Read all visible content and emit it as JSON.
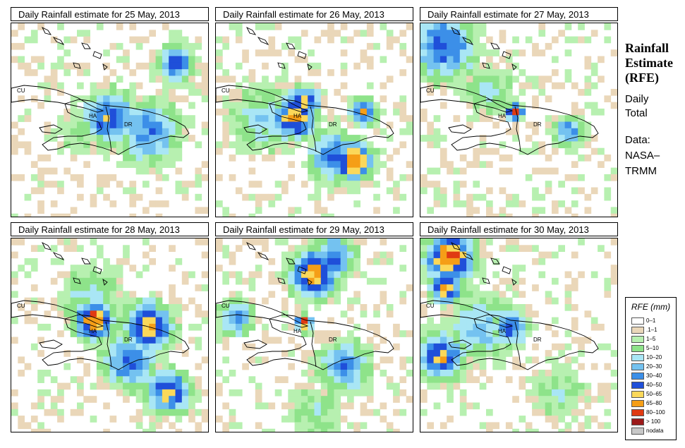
{
  "panels": [
    {
      "title": "Daily Rainfall estimate for  25 May, 2013",
      "labels": {
        "cu": "CU",
        "ha": "HA",
        "dr": "DR"
      }
    },
    {
      "title": "Daily Rainfall estimate for  26 May, 2013",
      "labels": {
        "cu": "CU",
        "ha": "HA",
        "dr": "DR"
      }
    },
    {
      "title": "Daily Rainfall estimate for  27 May, 2013",
      "labels": {
        "cu": "CU",
        "ha": "HA",
        "dr": "DR"
      }
    },
    {
      "title": "Daily Rainfall estimate for  28 May, 2013",
      "labels": {
        "cu": "CU",
        "ha": "HA",
        "dr": "DR"
      }
    },
    {
      "title": "Daily Rainfall estimate for  29 May, 2013",
      "labels": {
        "cu": "CU",
        "ha": "HA",
        "dr": "DR"
      }
    },
    {
      "title": "Daily Rainfall estimate for  30 May, 2013",
      "labels": {
        "cu": "CU",
        "ha": "HA",
        "dr": "DR"
      }
    }
  ],
  "side": {
    "title_lines": [
      "Rainfall",
      "Estimate",
      "(RFE)"
    ],
    "daily": "Daily",
    "total": "Total",
    "data_label": "Data:",
    "source_1": "NASA–",
    "source_2": "TRMM"
  },
  "legend": {
    "title": "RFE (mm)",
    "entries": [
      {
        "label": "0–1",
        "color": "#ffffff"
      },
      {
        "label": ".1–1",
        "color": "#ead7b9"
      },
      {
        "label": "1–5",
        "color": "#b7f0b0"
      },
      {
        "label": "5–10",
        "color": "#8ee38a"
      },
      {
        "label": "10–20",
        "color": "#a9e6f5"
      },
      {
        "label": "20–30",
        "color": "#74c2f0"
      },
      {
        "label": "30–40",
        "color": "#3c8fe8"
      },
      {
        "label": "40–50",
        "color": "#1f4fd9"
      },
      {
        "label": "50–65",
        "color": "#fbd85a"
      },
      {
        "label": "65–80",
        "color": "#f59e17"
      },
      {
        "label": "80–100",
        "color": "#e03a12"
      },
      {
        "label": "> 100",
        "color": "#9c1a1a"
      },
      {
        "label": "nodata",
        "color": "#c8c8c8"
      }
    ]
  },
  "rain_fields": [
    {
      "day": "25 May, 2013",
      "centers": [
        {
          "lon": 0.84,
          "lat": 0.2,
          "level": 7,
          "r": 0.07
        },
        {
          "lon": 0.5,
          "lat": 0.48,
          "level": 7,
          "r": 0.1
        },
        {
          "lon": 0.46,
          "lat": 0.52,
          "level": 8,
          "r": 0.03
        },
        {
          "lon": 0.7,
          "lat": 0.55,
          "level": 6,
          "r": 0.12
        },
        {
          "lon": 0.35,
          "lat": 0.55,
          "level": 3,
          "r": 0.1
        }
      ]
    },
    {
      "day": "26 May, 2013",
      "centers": [
        {
          "lon": 0.4,
          "lat": 0.48,
          "level": 9,
          "r": 0.08
        },
        {
          "lon": 0.45,
          "lat": 0.4,
          "level": 8,
          "r": 0.06
        },
        {
          "lon": 0.7,
          "lat": 0.7,
          "level": 10,
          "r": 0.07
        },
        {
          "lon": 0.6,
          "lat": 0.68,
          "level": 7,
          "r": 0.09
        },
        {
          "lon": 0.75,
          "lat": 0.45,
          "level": 8,
          "r": 0.05
        },
        {
          "lon": 0.25,
          "lat": 0.48,
          "level": 4,
          "r": 0.14
        }
      ]
    },
    {
      "day": "27 May, 2013",
      "centers": [
        {
          "lon": 0.12,
          "lat": 0.12,
          "level": 7,
          "r": 0.12
        },
        {
          "lon": 0.48,
          "lat": 0.45,
          "level": 11,
          "r": 0.03
        },
        {
          "lon": 0.75,
          "lat": 0.55,
          "level": 6,
          "r": 0.06
        },
        {
          "lon": 0.35,
          "lat": 0.35,
          "level": 4,
          "r": 0.1
        }
      ]
    },
    {
      "day": "28 May, 2013",
      "centers": [
        {
          "lon": 0.42,
          "lat": 0.42,
          "level": 10,
          "r": 0.07
        },
        {
          "lon": 0.7,
          "lat": 0.45,
          "level": 9,
          "r": 0.09
        },
        {
          "lon": 0.8,
          "lat": 0.78,
          "level": 8,
          "r": 0.08
        },
        {
          "lon": 0.6,
          "lat": 0.62,
          "level": 7,
          "r": 0.1
        },
        {
          "lon": 0.4,
          "lat": 0.3,
          "level": 4,
          "r": 0.12
        }
      ]
    },
    {
      "day": "29 May, 2013",
      "centers": [
        {
          "lon": 0.5,
          "lat": 0.18,
          "level": 9,
          "r": 0.09
        },
        {
          "lon": 0.6,
          "lat": 0.1,
          "level": 7,
          "r": 0.08
        },
        {
          "lon": 0.45,
          "lat": 0.43,
          "level": 11,
          "r": 0.03
        },
        {
          "lon": 0.1,
          "lat": 0.4,
          "level": 6,
          "r": 0.07
        },
        {
          "lon": 0.65,
          "lat": 0.65,
          "level": 6,
          "r": 0.1
        },
        {
          "lon": 0.5,
          "lat": 0.88,
          "level": 3,
          "r": 0.12
        }
      ]
    },
    {
      "day": "30 May, 2013",
      "centers": [
        {
          "lon": 0.15,
          "lat": 0.1,
          "level": 10,
          "r": 0.09
        },
        {
          "lon": 0.13,
          "lat": 0.25,
          "level": 9,
          "r": 0.06
        },
        {
          "lon": 0.1,
          "lat": 0.6,
          "level": 8,
          "r": 0.09
        },
        {
          "lon": 0.45,
          "lat": 0.45,
          "level": 7,
          "r": 0.07
        },
        {
          "lon": 0.3,
          "lat": 0.45,
          "level": 5,
          "r": 0.12
        },
        {
          "lon": 0.7,
          "lat": 0.8,
          "level": 3,
          "r": 0.12
        }
      ]
    }
  ]
}
